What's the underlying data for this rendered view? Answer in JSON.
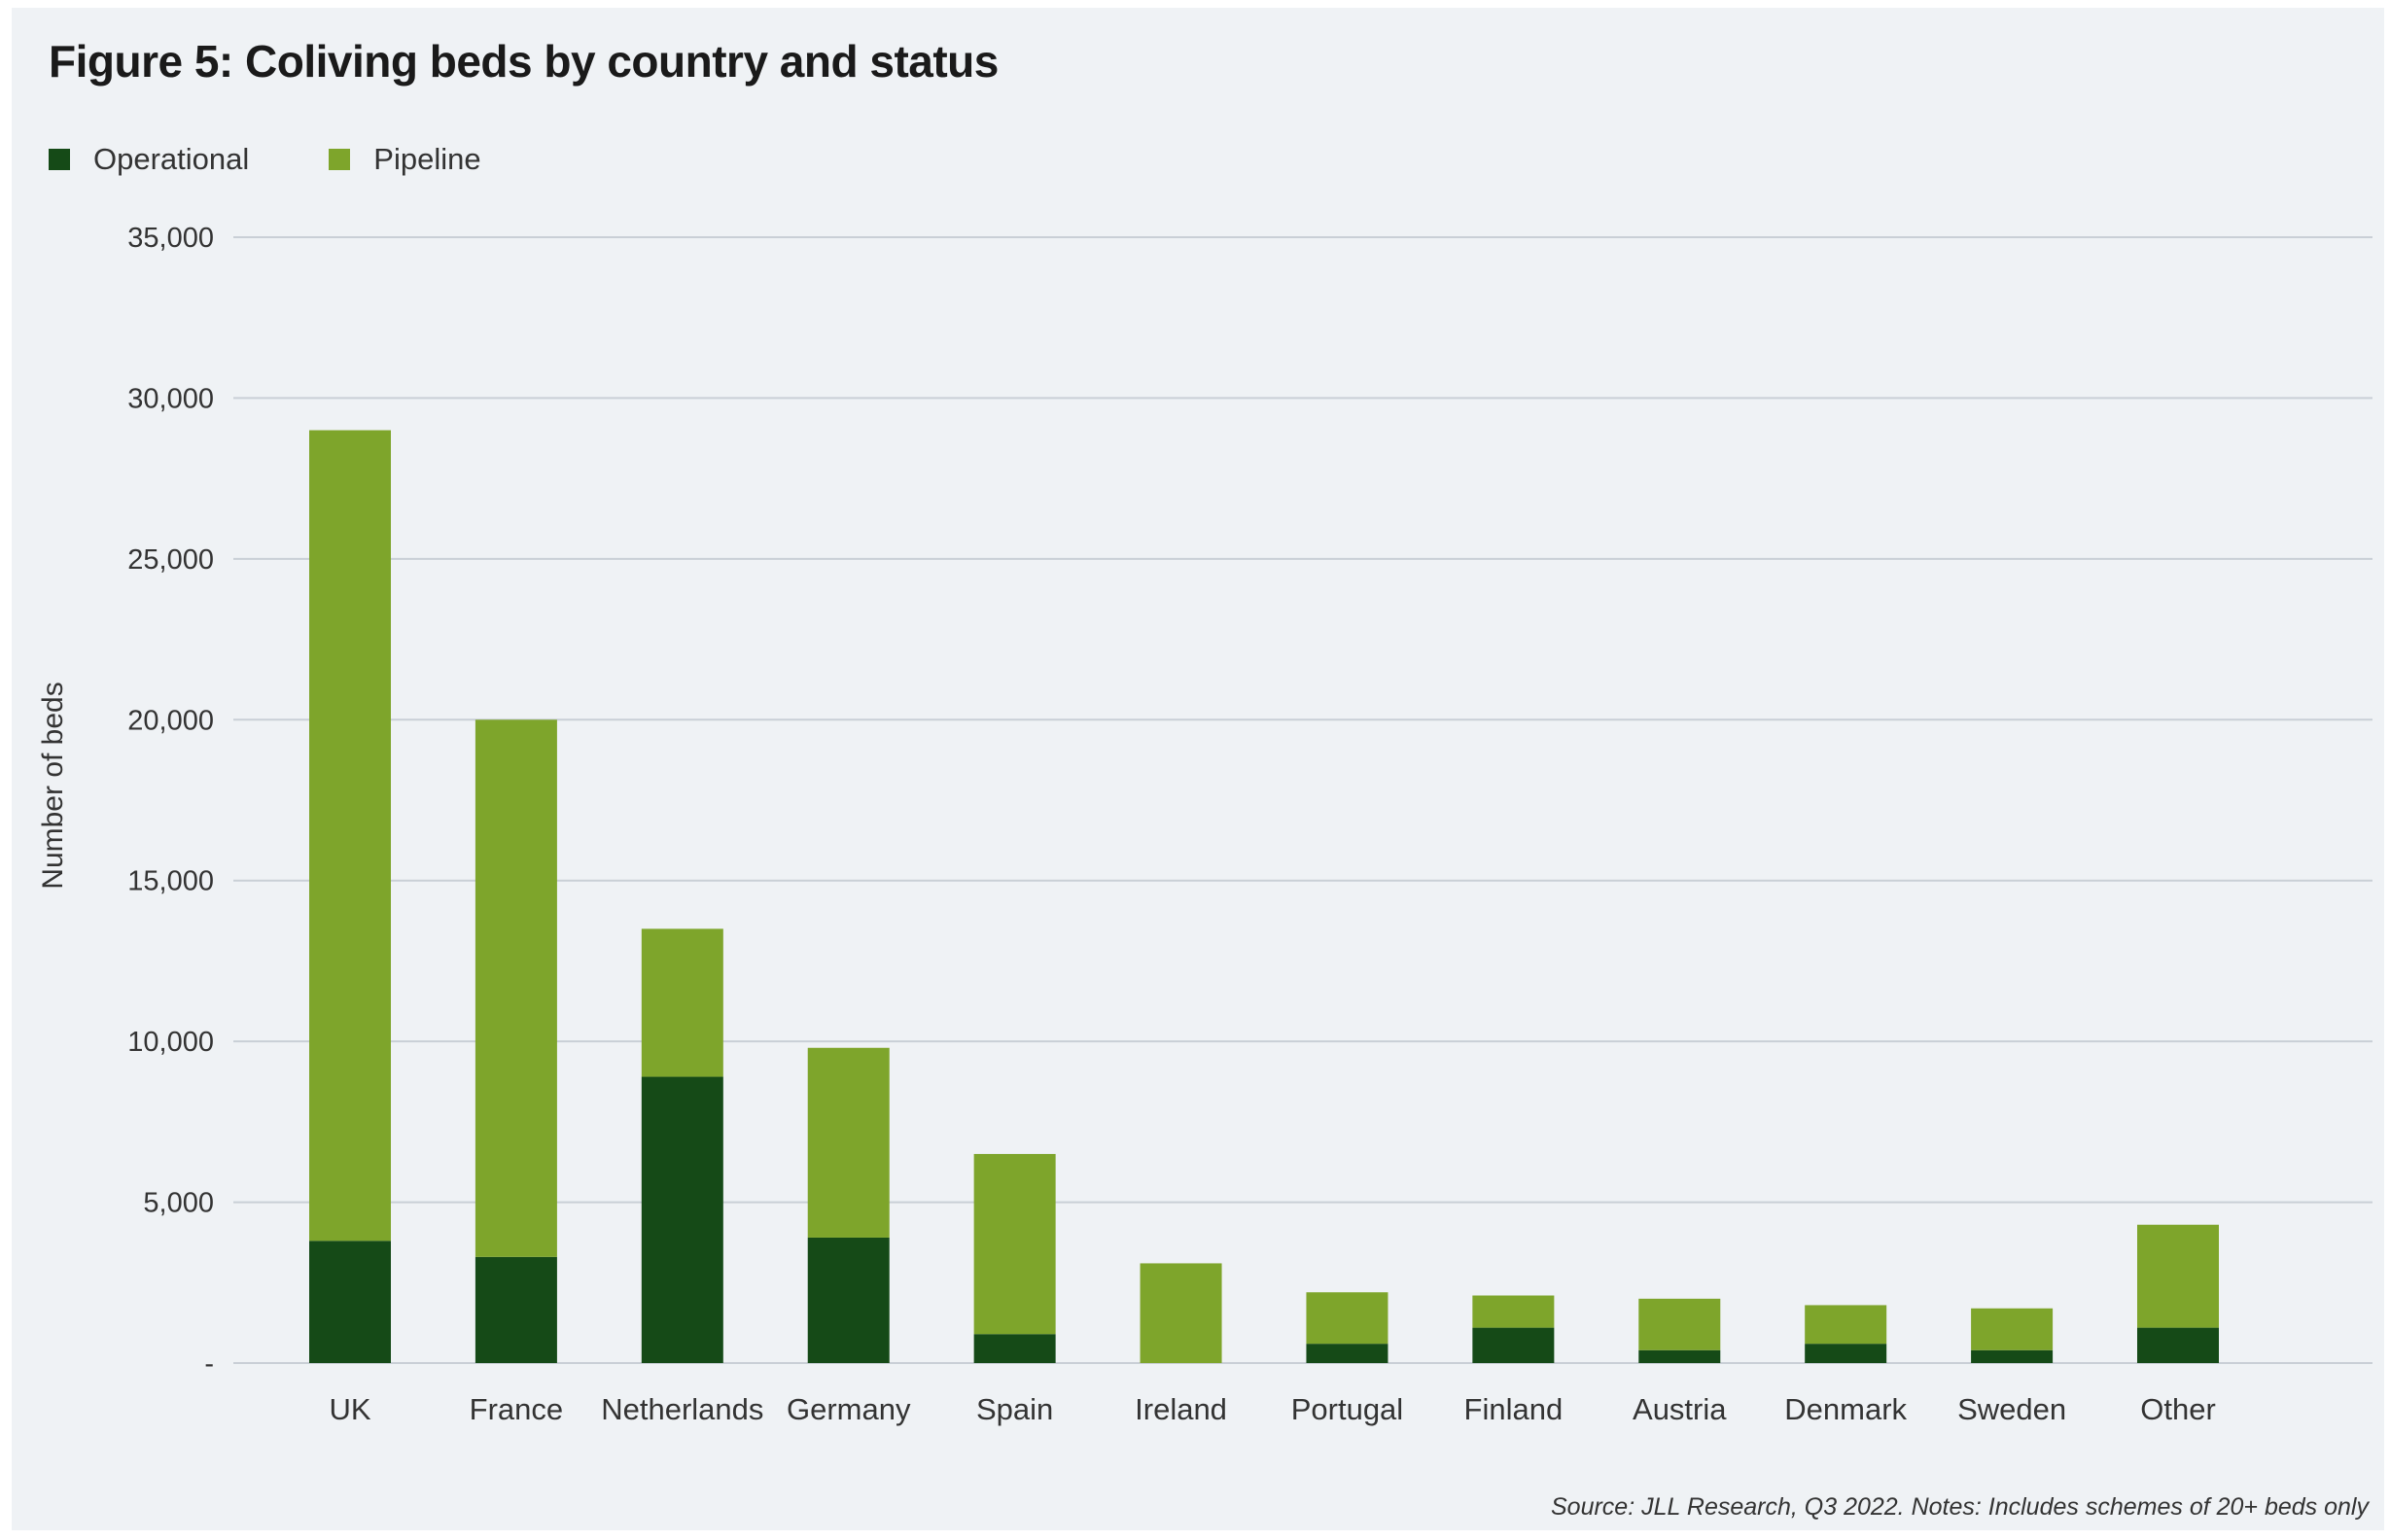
{
  "title": "Figure 5: Coliving beds by country and status",
  "source_note": "Source: JLL Research, Q3 2022. Notes: Includes schemes of 20+ beds only",
  "colors": {
    "operational": "#154a17",
    "pipeline": "#7ea52b",
    "grid": "#c9cfd6",
    "background": "#eff2f5"
  },
  "chart_data": {
    "type": "bar",
    "stacked": true,
    "title": "Figure 5: Coliving beds by country and status",
    "xlabel": "",
    "ylabel": "Number of beds",
    "ylim": [
      0,
      35000
    ],
    "yticks": [
      0,
      5000,
      10000,
      15000,
      20000,
      25000,
      30000,
      35000
    ],
    "ytick_labels": [
      "-",
      "5,000",
      "10,000",
      "15,000",
      "20,000",
      "25,000",
      "30,000",
      "35,000"
    ],
    "grid": true,
    "legend": "top-left",
    "categories": [
      "UK",
      "France",
      "Netherlands",
      "Germany",
      "Spain",
      "Ireland",
      "Portugal",
      "Finland",
      "Austria",
      "Denmark",
      "Sweden",
      "Other"
    ],
    "series": [
      {
        "name": "Operational",
        "color": "#154a17",
        "values": [
          3800,
          3300,
          8900,
          3900,
          900,
          0,
          600,
          1100,
          400,
          600,
          400,
          1100
        ]
      },
      {
        "name": "Pipeline",
        "color": "#7ea52b",
        "values": [
          25200,
          16700,
          4600,
          5900,
          5600,
          3100,
          1600,
          1000,
          1600,
          1200,
          1300,
          3200
        ]
      }
    ]
  }
}
